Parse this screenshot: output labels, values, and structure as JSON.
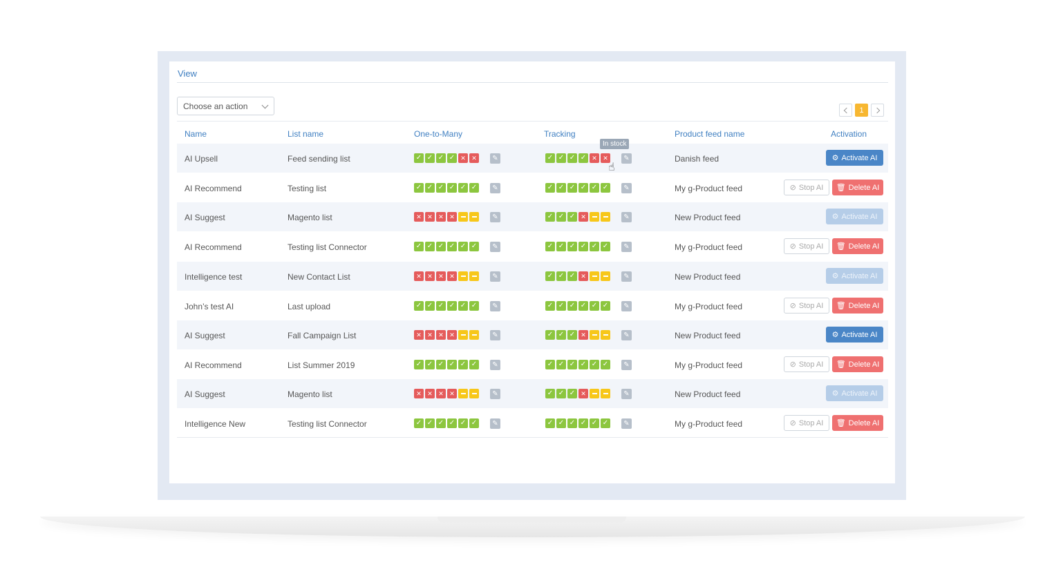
{
  "view": {
    "title": "View"
  },
  "toolbar": {
    "action_placeholder": "Choose an action"
  },
  "pager": {
    "current": "1"
  },
  "columns": {
    "name": "Name",
    "list_name": "List name",
    "one_to_many": "One-to-Many",
    "tracking": "Tracking",
    "feed": "Product feed name",
    "activation": "Activation"
  },
  "buttons": {
    "activate": "Activate AI",
    "stop": "Stop AI",
    "delete": "Delete AI"
  },
  "tooltip": {
    "text": "In stock"
  },
  "colors": {
    "ok": "#8cc63f",
    "no": "#e55b5b",
    "mid": "#f7c71a",
    "accent": "#3f7fc1"
  },
  "rows": [
    {
      "name": "AI Upsell",
      "list": "Feed sending list",
      "otm": [
        "ok",
        "ok",
        "ok",
        "ok",
        "no",
        "no"
      ],
      "trk": [
        "ok",
        "ok",
        "ok",
        "ok",
        "no",
        "no"
      ],
      "feed": "Danish feed",
      "activation": "activate"
    },
    {
      "name": "AI Recommend",
      "list": "Testing list",
      "otm": [
        "ok",
        "ok",
        "ok",
        "ok",
        "ok",
        "ok"
      ],
      "trk": [
        "ok",
        "ok",
        "ok",
        "ok",
        "ok",
        "ok"
      ],
      "feed": "My g-Product feed",
      "activation": "stop-delete"
    },
    {
      "name": "AI Suggest",
      "list": "Magento list",
      "otm": [
        "no",
        "no",
        "no",
        "no",
        "mid",
        "mid"
      ],
      "trk": [
        "ok",
        "ok",
        "ok",
        "no",
        "mid",
        "mid"
      ],
      "feed": "New  Product feed",
      "activation": "activate-disabled"
    },
    {
      "name": "AI Recommend",
      "list": "Testing list Connector",
      "otm": [
        "ok",
        "ok",
        "ok",
        "ok",
        "ok",
        "ok"
      ],
      "trk": [
        "ok",
        "ok",
        "ok",
        "ok",
        "ok",
        "ok"
      ],
      "feed": "My g-Product feed",
      "activation": "stop-delete"
    },
    {
      "name": "Intelligence test",
      "list": "New Contact List",
      "otm": [
        "no",
        "no",
        "no",
        "no",
        "mid",
        "mid"
      ],
      "trk": [
        "ok",
        "ok",
        "ok",
        "no",
        "mid",
        "mid"
      ],
      "feed": "New  Product feed",
      "activation": "activate-disabled"
    },
    {
      "name": "John’s test AI",
      "list": "Last upload",
      "otm": [
        "ok",
        "ok",
        "ok",
        "ok",
        "ok",
        "ok"
      ],
      "trk": [
        "ok",
        "ok",
        "ok",
        "ok",
        "ok",
        "ok"
      ],
      "feed": "My g-Product feed",
      "activation": "stop-delete"
    },
    {
      "name": "AI Suggest",
      "list": "Fall Campaign List",
      "otm": [
        "no",
        "no",
        "no",
        "no",
        "mid",
        "mid"
      ],
      "trk": [
        "ok",
        "ok",
        "ok",
        "no",
        "mid",
        "mid"
      ],
      "feed": "New  Product feed",
      "activation": "activate"
    },
    {
      "name": "AI Recommend",
      "list": "List Summer 2019",
      "otm": [
        "ok",
        "ok",
        "ok",
        "ok",
        "ok",
        "ok"
      ],
      "trk": [
        "ok",
        "ok",
        "ok",
        "ok",
        "ok",
        "ok"
      ],
      "feed": "My g-Product feed",
      "activation": "stop-delete"
    },
    {
      "name": "AI Suggest",
      "list": "Magento list",
      "otm": [
        "no",
        "no",
        "no",
        "no",
        "mid",
        "mid"
      ],
      "trk": [
        "ok",
        "ok",
        "ok",
        "no",
        "mid",
        "mid"
      ],
      "feed": "New  Product feed",
      "activation": "activate-disabled"
    },
    {
      "name": "Intelligence New",
      "list": "Testing list Connector",
      "otm": [
        "ok",
        "ok",
        "ok",
        "ok",
        "ok",
        "ok"
      ],
      "trk": [
        "ok",
        "ok",
        "ok",
        "ok",
        "ok",
        "ok"
      ],
      "feed": "My g-Product feed",
      "activation": "stop-delete"
    }
  ]
}
